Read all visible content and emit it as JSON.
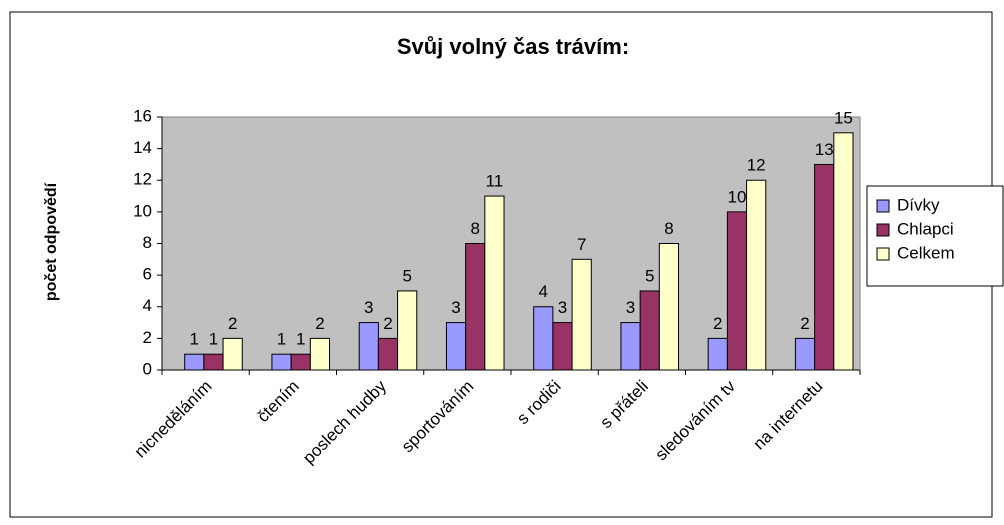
{
  "chart_data": {
    "type": "bar",
    "title": "Svůj volný čas trávím:",
    "y_label": "počet odpovědí",
    "categories": [
      "nicneděláním",
      "čtením",
      "poslech hudby",
      "sportováním",
      "s rodiči",
      "s přáteli",
      "sledováním tv",
      "na internetu"
    ],
    "series": [
      {
        "name": "Dívky",
        "color": "#9999ff",
        "values": [
          1,
          1,
          3,
          3,
          4,
          3,
          2,
          2
        ]
      },
      {
        "name": "Chlapci",
        "color": "#993366",
        "values": [
          1,
          1,
          2,
          8,
          3,
          5,
          10,
          13
        ]
      },
      {
        "name": "Celkem",
        "color": "#ffffcc",
        "values": [
          2,
          2,
          5,
          11,
          7,
          8,
          12,
          15
        ]
      }
    ],
    "ylim": [
      0,
      16
    ],
    "yticks": [
      0,
      2,
      4,
      6,
      8,
      10,
      12,
      14,
      16
    ],
    "grid": false,
    "legend": "right",
    "plot_background": "#c0c0c0"
  }
}
